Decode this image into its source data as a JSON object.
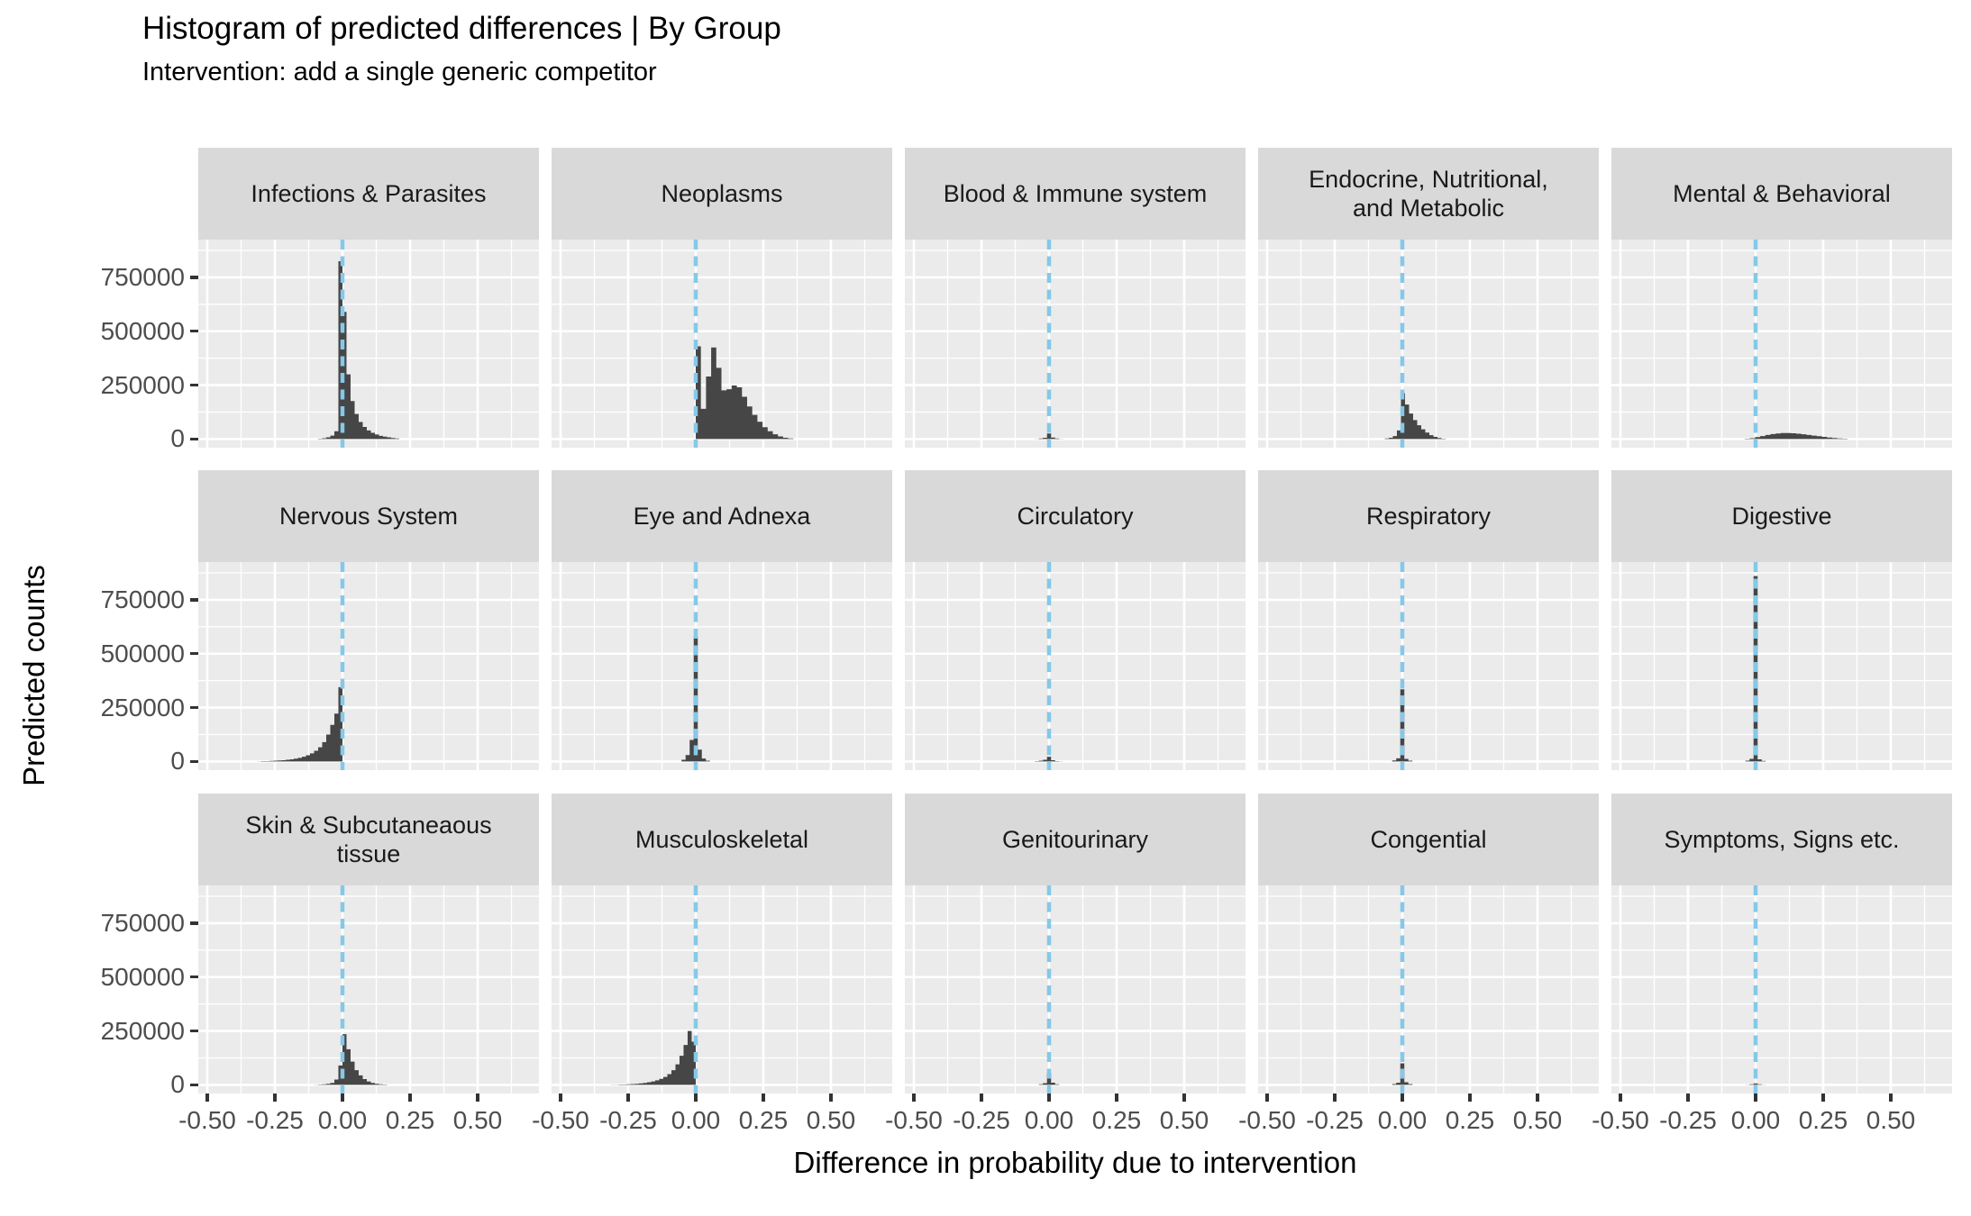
{
  "title": "Histogram of predicted differences | By Group",
  "subtitle": "Intervention: add a single generic competitor",
  "axes": {
    "x_title": "Difference in probability due to intervention",
    "y_title": "Predicted counts",
    "x_tick_labels": [
      "-0.50",
      "-0.25",
      "0.00",
      "0.25",
      "0.50"
    ],
    "x_tick_values": [
      -0.5,
      -0.25,
      0,
      0.25,
      0.5
    ],
    "x_minor_values": [
      -0.375,
      -0.125,
      0.125,
      0.375,
      0.625
    ],
    "y_tick_labels": [
      "750000",
      "500000",
      "250000",
      "0"
    ],
    "y_tick_values": [
      750000,
      500000,
      250000,
      0
    ],
    "y_minor_values": [
      125000,
      375000,
      625000,
      875000
    ]
  },
  "style": {
    "panel_bg": "#EBEBEB",
    "strip_bg": "#D9D9D9",
    "strip_text": "#1A1A1A",
    "grid_color": "#FFFFFF",
    "bar_color": "#464646",
    "ref_line_color": "#85C8E8",
    "tick_text": "#4D4D4D",
    "tick_mark": "#333333"
  },
  "chart_data": {
    "type": "bar",
    "subtype": "faceted-histogram",
    "facet_layout": {
      "rows": 3,
      "cols": 5
    },
    "x_range": [
      -0.5333,
      0.7267
    ],
    "y_range": [
      -40000,
      925000
    ],
    "ref_line_x": 0,
    "grid": true,
    "panels": [
      {
        "label": "Infections & Parasites",
        "start": -0.09,
        "binw": 0.015,
        "counts": [
          2000,
          4000,
          8000,
          16000,
          36000,
          825000,
          590000,
          300000,
          176000,
          116000,
          79000,
          56000,
          40000,
          29000,
          21000,
          15000,
          11000,
          8000,
          5000,
          3000
        ]
      },
      {
        "label": "Neoplasms",
        "start": 0.0,
        "binw": 0.019,
        "counts": [
          430000,
          140000,
          290000,
          425000,
          330000,
          226000,
          231000,
          248000,
          240000,
          196000,
          151000,
          112000,
          80000,
          55000,
          36000,
          22000,
          12000,
          6000,
          3000
        ]
      },
      {
        "label": "Blood & Immune system",
        "start": -0.0525,
        "binw": 0.015,
        "counts": [
          1000,
          3000,
          6000,
          26000,
          7000,
          3000,
          1000
        ]
      },
      {
        "label": "Endocrine, Nutritional,\nand Metabolic",
        "start": -0.065,
        "binw": 0.015,
        "counts": [
          3000,
          6000,
          14000,
          40000,
          213000,
          160000,
          118000,
          88000,
          64000,
          45000,
          30000,
          18000,
          10000,
          5000,
          2000
        ]
      },
      {
        "label": "Mental & Behavioral",
        "start": -0.04,
        "binw": 0.019,
        "counts": [
          2000,
          4000,
          9000,
          14000,
          19000,
          23000,
          26000,
          28000,
          28000,
          27000,
          25000,
          22000,
          19000,
          16000,
          13000,
          10000,
          7000,
          5000,
          3000,
          2000
        ]
      },
      {
        "label": "Nervous System",
        "start": -0.315,
        "binw": 0.015,
        "counts": [
          1000,
          2000,
          2000,
          3000,
          4000,
          5000,
          6000,
          8000,
          10000,
          13000,
          17000,
          22000,
          29000,
          38000,
          50000,
          66000,
          90000,
          125000,
          170000,
          222000,
          345000
        ]
      },
      {
        "label": "Eye and Adnexa",
        "start": -0.0525,
        "binw": 0.015,
        "counts": [
          8000,
          30000,
          100000,
          580000,
          55000,
          14000,
          4000
        ]
      },
      {
        "label": "Circulatory",
        "start": -0.0525,
        "binw": 0.015,
        "counts": [
          2000,
          4000,
          8000,
          22000,
          6000,
          2000,
          1000
        ]
      },
      {
        "label": "Respiratory",
        "start": -0.0375,
        "binw": 0.015,
        "counts": [
          5000,
          15000,
          335000,
          12000,
          4000
        ]
      },
      {
        "label": "Digestive",
        "start": -0.0375,
        "binw": 0.015,
        "counts": [
          4000,
          12000,
          860000,
          10000,
          3000
        ]
      },
      {
        "label": "Skin & Subcutaneaous\ntissue",
        "start": -0.105,
        "binw": 0.015,
        "counts": [
          1000,
          2000,
          3000,
          5000,
          9000,
          25000,
          90000,
          235000,
          165000,
          108000,
          68000,
          44000,
          27000,
          16000,
          9000,
          5000,
          3000,
          2000
        ]
      },
      {
        "label": "Musculoskeletal",
        "start": -0.315,
        "binw": 0.015,
        "counts": [
          1000,
          1000,
          2000,
          2000,
          3000,
          4000,
          5000,
          7000,
          9000,
          12000,
          16000,
          21000,
          28000,
          37000,
          50000,
          68000,
          95000,
          135000,
          185000,
          250000,
          200000
        ]
      },
      {
        "label": "Genitourinary",
        "start": -0.0375,
        "binw": 0.015,
        "counts": [
          3000,
          8000,
          55000,
          10000,
          3000
        ]
      },
      {
        "label": "Congential",
        "start": -0.0375,
        "binw": 0.015,
        "counts": [
          4000,
          10000,
          100000,
          12000,
          4000
        ]
      },
      {
        "label": "Symptoms, Signs etc.",
        "start": -0.0375,
        "binw": 0.015,
        "counts": [
          1000,
          3000,
          7000,
          3000,
          1000
        ]
      }
    ]
  }
}
